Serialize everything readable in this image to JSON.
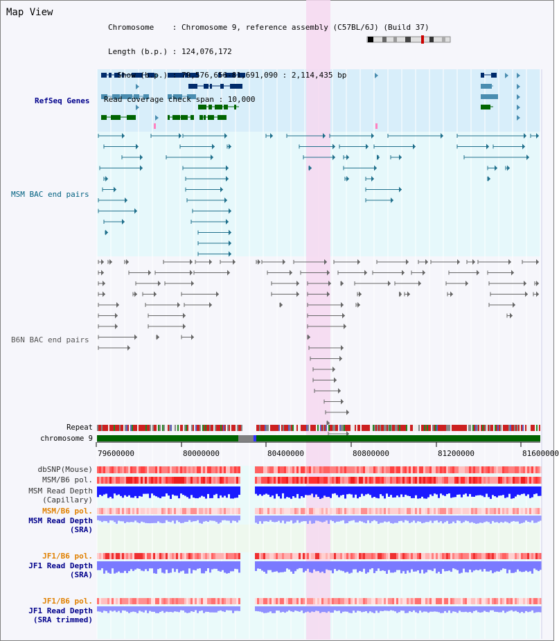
{
  "title": "Map View",
  "info": {
    "chromosome": "Chromosome    : Chromosome 9, reference assembly (C57BL/6J) (Build 37)",
    "length": "Length (b.p.) : 124,076,172",
    "show": "  Show (b.p.) : 79,576,656-81,691,090 : 2,114,435 bp",
    "coverage": "Read coverage check span : 10,000"
  },
  "tracks": {
    "refseq": "RefSeq Genes",
    "msm_bac": "MSM BAC end pairs",
    "b6n_bac": "B6N BAC end pairs",
    "repeat": "Repeat",
    "chromosome": "chromosome 9",
    "dbsnp": "dbSNP(Mouse)",
    "msm_b6_pol1": "MSM/B6 pol.",
    "msm_depth_cap1": "MSM Read Depth",
    "msm_depth_cap2": "(Capillary)",
    "msm_b6_pol2": "MSM/B6 pol.",
    "msm_depth_sra1": "MSM Read Depth",
    "msm_depth_sra2": "(SRA)",
    "jf1_pol1": "JF1/B6 pol.",
    "jf1_depth_sra1": "JF1 Read Depth",
    "jf1_depth_sra2": "(SRA)",
    "jf1_pol2": "JF1/B6 pol.",
    "jf1_depth_trim1": "JF1 Read Depth",
    "jf1_depth_trim2": "(SRA trimmed)"
  },
  "axis": {
    "ticks": [
      "79600000",
      "80000000",
      "80400000",
      "80800000",
      "81200000",
      "81600000"
    ]
  },
  "colors": {
    "highlight": "#f6d8f0",
    "refseq_bg": "#d8eefa",
    "bac_bg": "#e6f8fb",
    "chromosome_green": "#006400",
    "label_blue": "#00008b",
    "label_teal": "#006080",
    "label_gray": "#555555",
    "label_orange": "#e08000"
  }
}
